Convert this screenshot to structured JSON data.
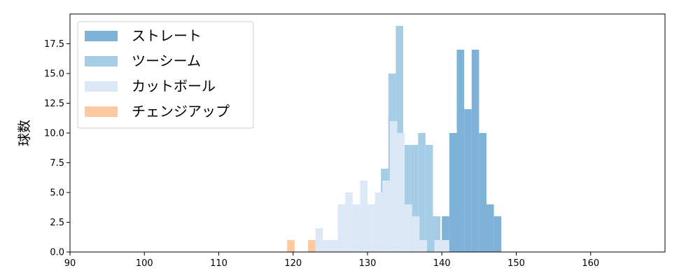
{
  "chart_data": {
    "type": "bar",
    "title": "",
    "xlabel": "",
    "ylabel": "球数",
    "xlim": [
      90,
      170
    ],
    "ylim": [
      0,
      20
    ],
    "x_ticks": [
      90,
      100,
      110,
      120,
      130,
      140,
      150,
      160
    ],
    "x_tick_labels": [
      "90",
      "100",
      "110",
      "120",
      "130",
      "140",
      "150",
      "160"
    ],
    "y_ticks": [
      0,
      2.5,
      5,
      7.5,
      10,
      12.5,
      15,
      17.5
    ],
    "y_tick_labels": [
      "0.0",
      "2.5",
      "5.0",
      "7.5",
      "10.0",
      "12.5",
      "15.0",
      "17.5"
    ],
    "grid": false,
    "legend_position": "upper-left",
    "series": [
      {
        "name": "ストレート",
        "color": "#7fb2d9",
        "bins": [
          {
            "x0": 138,
            "x1": 139,
            "count": 1
          },
          {
            "x0": 140,
            "x1": 141,
            "count": 3
          },
          {
            "x0": 141,
            "x1": 142,
            "count": 10
          },
          {
            "x0": 142,
            "x1": 143,
            "count": 17
          },
          {
            "x0": 143,
            "x1": 144,
            "count": 12
          },
          {
            "x0": 144,
            "x1": 145,
            "count": 17
          },
          {
            "x0": 145,
            "x1": 146,
            "count": 10
          },
          {
            "x0": 146,
            "x1": 147,
            "count": 4
          },
          {
            "x0": 147,
            "x1": 148,
            "count": 3
          }
        ]
      },
      {
        "name": "ツーシーム",
        "color": "#a6cde6",
        "bins": [
          {
            "x0": 128.8,
            "x1": 129.8,
            "count": 3
          },
          {
            "x0": 131.8,
            "x1": 132.8,
            "count": 7
          },
          {
            "x0": 132.8,
            "x1": 133.8,
            "count": 15
          },
          {
            "x0": 133.8,
            "x1": 134.8,
            "count": 19
          },
          {
            "x0": 134.8,
            "x1": 135.8,
            "count": 9
          },
          {
            "x0": 135.8,
            "x1": 136.8,
            "count": 9
          },
          {
            "x0": 136.8,
            "x1": 137.8,
            "count": 10
          },
          {
            "x0": 137.8,
            "x1": 138.8,
            "count": 9
          },
          {
            "x0": 138.8,
            "x1": 139.8,
            "count": 3
          }
        ]
      },
      {
        "name": "カットボール",
        "color": "#dce8f5",
        "bins": [
          {
            "x0": 123,
            "x1": 124,
            "count": 2
          },
          {
            "x0": 124,
            "x1": 125,
            "count": 1
          },
          {
            "x0": 125,
            "x1": 126,
            "count": 1
          },
          {
            "x0": 126,
            "x1": 127,
            "count": 4
          },
          {
            "x0": 127,
            "x1": 128,
            "count": 5
          },
          {
            "x0": 128,
            "x1": 129,
            "count": 4
          },
          {
            "x0": 129,
            "x1": 130,
            "count": 6
          },
          {
            "x0": 130,
            "x1": 131,
            "count": 4
          },
          {
            "x0": 131,
            "x1": 132,
            "count": 5
          },
          {
            "x0": 132,
            "x1": 133,
            "count": 6
          },
          {
            "x0": 133,
            "x1": 134,
            "count": 11
          },
          {
            "x0": 134,
            "x1": 135,
            "count": 10
          },
          {
            "x0": 135,
            "x1": 136,
            "count": 4
          },
          {
            "x0": 136,
            "x1": 137,
            "count": 3
          },
          {
            "x0": 137,
            "x1": 138,
            "count": 1
          },
          {
            "x0": 139,
            "x1": 140,
            "count": 1
          },
          {
            "x0": 140,
            "x1": 141,
            "count": 1
          }
        ]
      },
      {
        "name": "チェンジアップ",
        "color": "#fdc9a0",
        "bins": [
          {
            "x0": 119.2,
            "x1": 120.2,
            "count": 1
          },
          {
            "x0": 122,
            "x1": 123,
            "count": 1
          }
        ]
      }
    ]
  }
}
